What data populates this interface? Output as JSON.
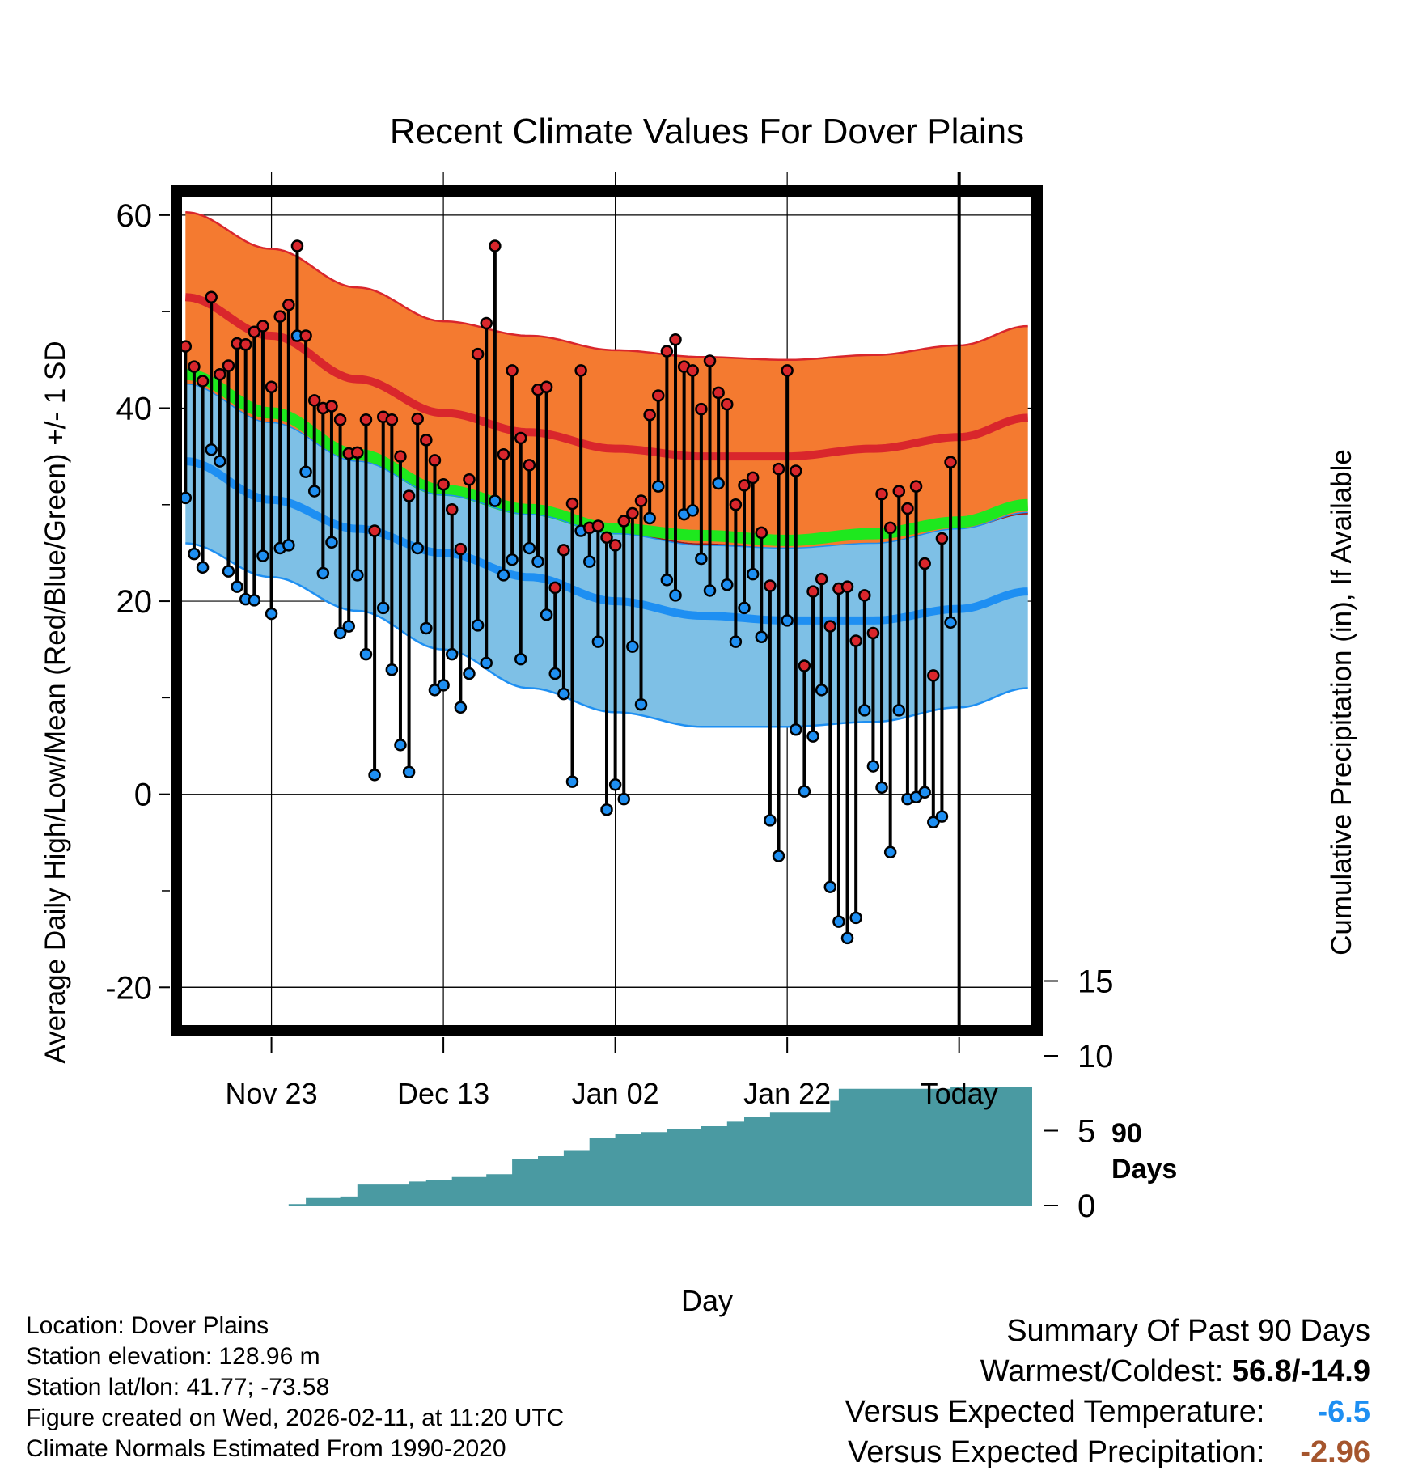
{
  "page": {
    "title": "Recent Climate Values For Dover Plains",
    "y_left_label": "Average Daily High/Low/Mean (Red/Blue/Green) +/- 1 SD",
    "y_right_label": "Cumulative Precipitation (in), If Available",
    "x_label": "Day",
    "period_label_1": "90",
    "period_label_2": "Days"
  },
  "footer": {
    "location": "Location: Dover Plains",
    "elevation": "Station elevation: 128.96 m",
    "latlon": "Station lat/lon: 41.77; -73.58",
    "created": "Figure created on Wed, 2026-02-11, at 11:20 UTC",
    "normals": "Climate Normals Estimated From 1990-2020"
  },
  "summary": {
    "heading": "Summary Of Past 90 Days",
    "warmest_coldest_label": "Warmest/Coldest:",
    "warmest_coldest_value": "56.8/-14.9",
    "temp_label": "Versus Expected Temperature:",
    "temp_value": "-6.5",
    "precip_label": "Versus Expected Precipitation:",
    "precip_value": "-2.96"
  },
  "colors": {
    "high_band": "#f47a30",
    "high_line": "#d9262c",
    "low_band": "#7ec0e6",
    "low_line": "#1e8ff2",
    "mean_line": "#1ee81e",
    "overlap": "#9e1a1a",
    "precip": "#4a9aa2",
    "frame": "#000000"
  },
  "chart_data": {
    "type": "line",
    "x_day_range": [
      -89.5,
      9.5
    ],
    "ylim_left": [
      -24,
      62
    ],
    "ylim_right": [
      0,
      20
    ],
    "x_ticks": [
      {
        "day": -79,
        "label": "Nov 23"
      },
      {
        "day": -59,
        "label": "Dec 13"
      },
      {
        "day": -39,
        "label": "Jan 02"
      },
      {
        "day": -19,
        "label": "Jan 22"
      },
      {
        "day": 1,
        "label": "Today"
      }
    ],
    "y_ticks_left": [
      60,
      40,
      20,
      0,
      -20
    ],
    "y_ticks_right": [
      0,
      5,
      10,
      15
    ],
    "normals": {
      "days": [
        -89,
        -79,
        -69,
        -59,
        -49,
        -39,
        -29,
        -19,
        -9,
        1,
        9
      ],
      "high_upper": [
        60.3,
        56.5,
        52.5,
        49.0,
        47.5,
        46.0,
        45.3,
        45.0,
        45.5,
        46.5,
        48.5
      ],
      "high_mean": [
        51.5,
        47.5,
        43.0,
        39.5,
        37.5,
        35.8,
        35.0,
        35.0,
        35.8,
        37.0,
        39.0
      ],
      "high_lower": [
        42.5,
        38.5,
        34.5,
        31.0,
        29.0,
        27.2,
        26.0,
        25.5,
        26.0,
        27.5,
        29.0
      ],
      "mean": [
        43.5,
        39.5,
        35.2,
        31.5,
        29.5,
        27.5,
        26.8,
        26.3,
        27.0,
        28.2,
        30.0
      ],
      "low_upper": [
        42.5,
        38.5,
        34.5,
        31.0,
        29.0,
        27.0,
        25.8,
        25.5,
        26.0,
        27.5,
        29.2
      ],
      "low_mean": [
        34.5,
        30.5,
        27.5,
        25.0,
        22.5,
        20.0,
        18.5,
        18.0,
        18.0,
        19.2,
        21.0
      ],
      "low_lower": [
        26.0,
        22.5,
        19.0,
        15.0,
        11.0,
        8.5,
        7.0,
        7.0,
        7.5,
        9.0,
        11.0
      ]
    },
    "series": [
      {
        "name": "Daily High",
        "values": [
          46.4,
          44.3,
          42.8,
          51.5,
          43.5,
          44.4,
          46.7,
          46.6,
          47.9,
          48.5,
          42.2,
          49.5,
          50.7,
          56.8,
          47.5,
          40.8,
          40.0,
          40.2,
          38.8,
          35.3,
          35.4,
          38.8,
          27.3,
          39.1,
          38.8,
          35.0,
          30.9,
          38.9,
          36.7,
          34.6,
          32.1,
          29.5,
          25.4,
          32.6,
          45.6,
          48.8,
          56.8,
          35.2,
          43.9,
          36.9,
          34.1,
          41.9,
          42.2,
          21.4,
          25.3,
          30.1,
          43.9,
          27.6,
          27.8,
          26.6,
          25.8,
          28.3,
          29.1,
          30.4,
          39.3,
          41.3,
          45.9,
          47.1,
          44.3,
          43.9,
          39.9,
          44.9,
          41.6,
          40.4,
          30.0,
          32.0,
          32.8,
          27.1,
          21.6,
          33.7,
          43.9,
          33.5,
          13.3,
          21.0,
          22.3,
          17.4,
          21.3,
          21.5,
          15.9,
          20.6,
          16.7,
          31.1,
          27.6,
          31.4,
          29.6,
          31.9,
          23.9,
          12.3,
          26.5,
          34.4
        ]
      },
      {
        "name": "Daily Low",
        "values": [
          30.7,
          24.9,
          23.5,
          35.7,
          34.5,
          23.1,
          21.5,
          20.2,
          20.1,
          24.7,
          18.7,
          25.5,
          25.8,
          47.5,
          33.4,
          31.4,
          22.9,
          26.1,
          16.7,
          17.4,
          22.7,
          14.5,
          2.0,
          19.3,
          12.9,
          5.1,
          2.3,
          25.5,
          17.2,
          10.8,
          11.3,
          14.5,
          9.0,
          12.5,
          17.5,
          13.6,
          30.4,
          22.7,
          24.3,
          14.0,
          25.5,
          24.1,
          18.6,
          12.5,
          10.4,
          1.3,
          27.3,
          24.1,
          15.8,
          -1.6,
          1.0,
          -0.5,
          15.3,
          9.3,
          28.6,
          31.9,
          22.2,
          20.6,
          29.0,
          29.4,
          24.4,
          21.1,
          32.2,
          21.7,
          15.8,
          19.3,
          22.8,
          16.3,
          -2.7,
          -6.4,
          18.0,
          6.7,
          0.3,
          6.0,
          10.8,
          -9.6,
          -13.2,
          -14.9,
          -12.8,
          8.7,
          2.9,
          0.7,
          -6.0,
          8.7,
          -0.5,
          -0.3,
          0.2,
          -2.9,
          -2.3,
          17.8
        ]
      },
      {
        "name": "Cumulative Precipitation",
        "days": [
          -89,
          -79,
          -77,
          -75,
          -71,
          -69,
          -66,
          -63,
          -61,
          -58,
          -54,
          -51,
          -48,
          -45,
          -42,
          -39,
          -36,
          -33,
          -29,
          -26,
          -24,
          -21,
          -16,
          -14,
          -13,
          0,
          9
        ],
        "values": [
          0,
          0,
          0.1,
          0.5,
          0.6,
          1.4,
          1.4,
          1.6,
          1.7,
          1.9,
          2.1,
          3.1,
          3.3,
          3.7,
          4.5,
          4.8,
          4.9,
          5.1,
          5.3,
          5.6,
          5.9,
          6.2,
          6.2,
          7.0,
          7.8,
          7.9,
          7.9
        ]
      }
    ]
  }
}
